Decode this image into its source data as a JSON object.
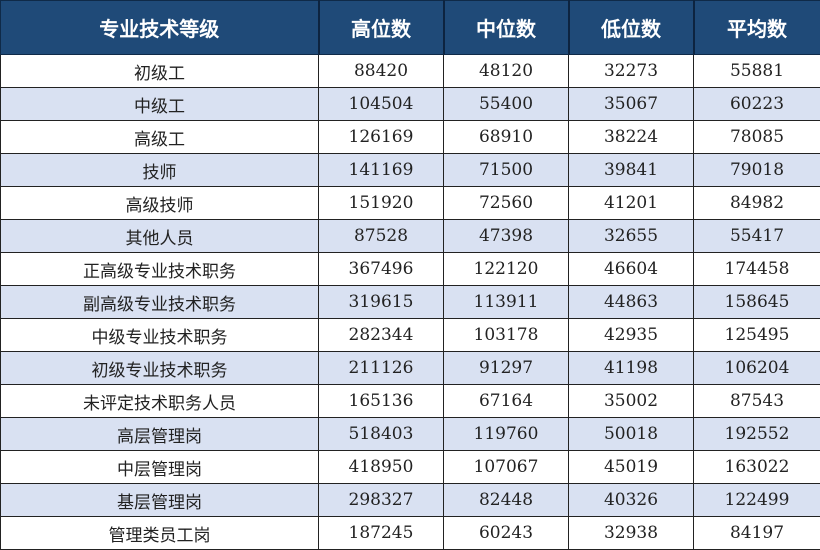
{
  "table": {
    "headers": [
      "专业技术等级",
      "高位数",
      "中位数",
      "低位数",
      "平均数"
    ],
    "rows": [
      [
        "初级工",
        "88420",
        "48120",
        "32273",
        "55881"
      ],
      [
        "中级工",
        "104504",
        "55400",
        "35067",
        "60223"
      ],
      [
        "高级工",
        "126169",
        "68910",
        "38224",
        "78085"
      ],
      [
        "技师",
        "141169",
        "71500",
        "39841",
        "79018"
      ],
      [
        "高级技师",
        "151920",
        "72560",
        "41201",
        "84982"
      ],
      [
        "其他人员",
        "87528",
        "47398",
        "32655",
        "55417"
      ],
      [
        "正高级专业技术职务",
        "367496",
        "122120",
        "46604",
        "174458"
      ],
      [
        "副高级专业技术职务",
        "319615",
        "113911",
        "44863",
        "158645"
      ],
      [
        "中级专业技术职务",
        "282344",
        "103178",
        "42935",
        "125495"
      ],
      [
        "初级专业技术职务",
        "211126",
        "91297",
        "41198",
        "106204"
      ],
      [
        "未评定技术职务人员",
        "165136",
        "67164",
        "35002",
        "87543"
      ],
      [
        "高层管理岗",
        "518403",
        "119760",
        "50018",
        "192552"
      ],
      [
        "中层管理岗",
        "418950",
        "107067",
        "45019",
        "163022"
      ],
      [
        "基层管理岗",
        "298327",
        "82448",
        "40326",
        "122499"
      ],
      [
        "管理类员工岗",
        "187245",
        "60243",
        "32938",
        "84197"
      ]
    ]
  },
  "colors": {
    "header_bg": "#1f4a78",
    "header_text": "#ffffff",
    "alt_row_bg": "#d9e1f2"
  }
}
